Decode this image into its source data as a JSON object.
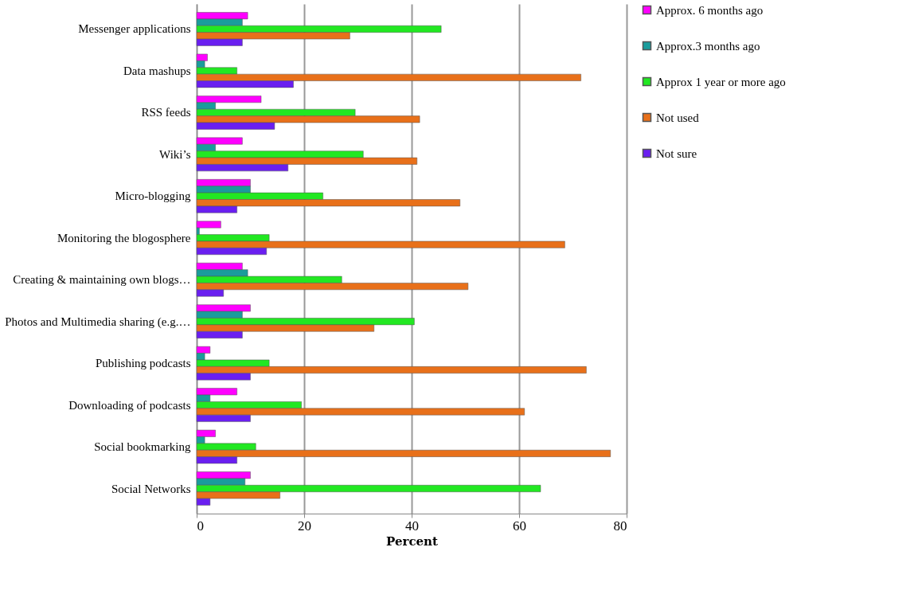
{
  "chart_data": {
    "type": "bar",
    "orientation": "horizontal",
    "xlabel": "Percent",
    "categories": [
      "Messenger applications",
      "Data mashups",
      "RSS feeds",
      "Wiki’s",
      "Micro-blogging",
      "Monitoring the blogosphere",
      "Creating & maintaining own blogs…",
      "Photos and Multimedia sharing (e.g.…",
      "Publishing podcasts",
      "Downloading of podcasts",
      "Social bookmarking",
      "Social Networks"
    ],
    "series": [
      {
        "name": "Approx. 6 months ago",
        "color": "#ff00ff",
        "values": [
          9.5,
          2,
          12,
          8.5,
          10,
          4.5,
          8.5,
          10,
          2.5,
          7.5,
          3.5,
          10
        ]
      },
      {
        "name": "Approx.3 months ago",
        "color": "#1a9c9c",
        "values": [
          8.5,
          1.5,
          3.5,
          3.5,
          10,
          0.5,
          9.5,
          8.5,
          1.5,
          2.5,
          1.5,
          9
        ]
      },
      {
        "name": "Approx 1 year or more ago",
        "color": "#22e822",
        "values": [
          45.5,
          7.5,
          29.5,
          31,
          23.5,
          13.5,
          27,
          40.5,
          13.5,
          19.5,
          11,
          64
        ]
      },
      {
        "name": "Not used",
        "color": "#e8701a",
        "values": [
          28.5,
          71.5,
          41.5,
          41,
          49,
          68.5,
          50.5,
          33,
          72.5,
          61,
          77,
          15.5
        ]
      },
      {
        "name": "Not sure",
        "color": "#6a1ff0",
        "values": [
          8.5,
          18,
          14.5,
          17,
          7.5,
          13,
          5,
          8.5,
          10,
          10,
          7.5,
          2.5
        ]
      }
    ],
    "xlim": [
      0,
      80
    ],
    "xticks": [
      0,
      20,
      40,
      60,
      80
    ],
    "grid": "x",
    "legend": "right"
  }
}
